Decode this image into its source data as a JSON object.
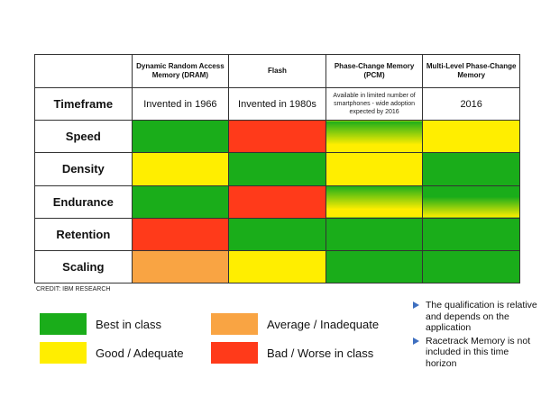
{
  "chart_data": {
    "type": "table",
    "title": "",
    "columns": [
      "Dynamic Random Access Memory (DRAM)",
      "Flash",
      "Phase-Change Memory (PCM)",
      "Multi-Level Phase-Change Memory"
    ],
    "rows": [
      {
        "label": "Timeframe",
        "cells": [
          "Invented in 1966",
          "Invented in 1980s",
          "Available in limited number of smartphones - wide adoption expected by 2016",
          "2016"
        ]
      },
      {
        "label": "Speed",
        "ratings": [
          "best",
          "bad",
          "good-best",
          "good"
        ]
      },
      {
        "label": "Density",
        "ratings": [
          "good",
          "best",
          "good",
          "best"
        ]
      },
      {
        "label": "Endurance",
        "ratings": [
          "best",
          "bad",
          "good-best",
          "best-good"
        ]
      },
      {
        "label": "Retention",
        "ratings": [
          "bad",
          "best",
          "best",
          "best"
        ]
      },
      {
        "label": "Scaling",
        "ratings": [
          "avg",
          "good",
          "best",
          "best"
        ]
      }
    ]
  },
  "legend": [
    {
      "key": "best",
      "label": "Best in class",
      "color": "#1aad1a"
    },
    {
      "key": "avg",
      "label": "Average / Inadequate",
      "color": "#f9a443"
    },
    {
      "key": "good",
      "label": "Good / Adequate",
      "color": "#ffee00"
    },
    {
      "key": "bad",
      "label": "Bad / Worse in class",
      "color": "#ff3a1a"
    }
  ],
  "credit": "CREDIT: IBM RESEARCH",
  "notes": [
    "The qualification is relative and depends on the application",
    "Racetrack Memory is not included in this time horizon"
  ]
}
